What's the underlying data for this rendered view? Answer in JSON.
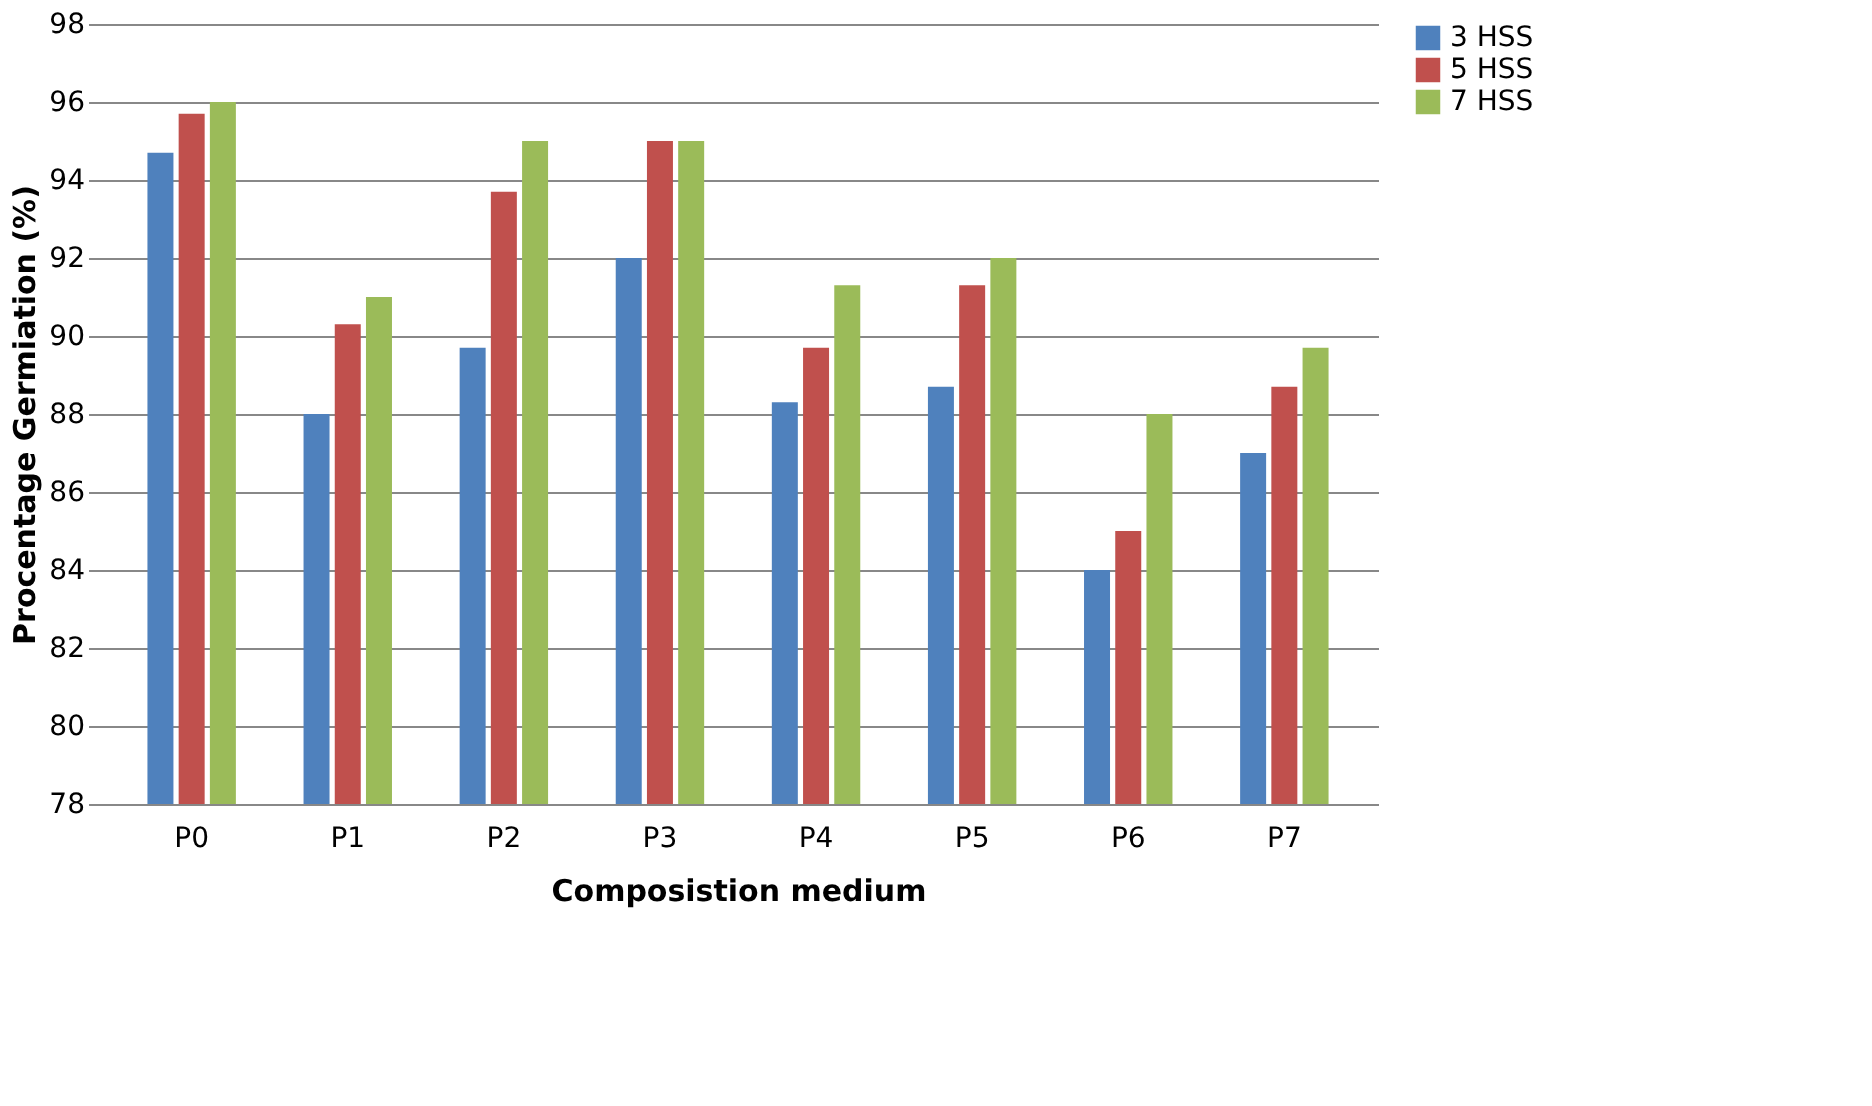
{
  "chart_data": {
    "type": "bar",
    "xlabel": "Composistion medium",
    "ylabel": "Procentage Germiation (%)",
    "categories": [
      "P0",
      "P1",
      "P2",
      "P3",
      "P4",
      "P5",
      "P6",
      "P7"
    ],
    "series": [
      {
        "name": "3 HSS",
        "color": "#4f81bd",
        "values": [
          94.7,
          88.0,
          89.7,
          92.0,
          88.3,
          88.7,
          84.0,
          87.0
        ]
      },
      {
        "name": "5 HSS",
        "color": "#c0504d",
        "values": [
          95.7,
          90.3,
          93.7,
          95.0,
          89.7,
          91.3,
          85.0,
          88.7
        ]
      },
      {
        "name": "7 HSS",
        "color": "#9bbb59",
        "values": [
          96.0,
          91.0,
          95.0,
          95.0,
          91.3,
          92.0,
          88.0,
          89.7
        ]
      }
    ],
    "ylim": [
      78,
      98
    ],
    "yticks": [
      78,
      80,
      82,
      84,
      86,
      88,
      90,
      92,
      94,
      96,
      98
    ],
    "grid": "y",
    "legend": "right"
  }
}
